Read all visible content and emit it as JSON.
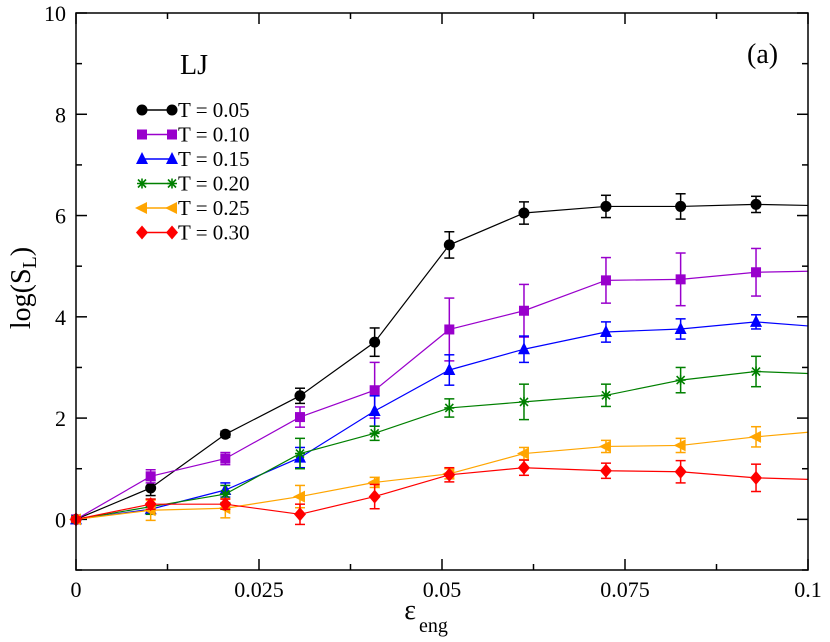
{
  "chart_data": {
    "type": "line",
    "title": "LJ",
    "panel_label": "(a)",
    "xlabel": "ε",
    "xlabel_sub": "eng",
    "ylabel": "log(S",
    "ylabel_sub": "L",
    "ylabel_close": ")",
    "xlim": [
      0,
      0.1
    ],
    "ylim": [
      -1,
      10
    ],
    "xticks": [
      0,
      0.025,
      0.05,
      0.075,
      0.1
    ],
    "xtick_labels": [
      "0",
      "0.025",
      "0.05",
      "0.075",
      "0.1"
    ],
    "yticks": [
      0,
      2,
      4,
      6,
      8,
      10
    ],
    "ytick_labels": [
      "0",
      "2",
      "4",
      "6",
      "8",
      "10"
    ],
    "legend_position": "top-left",
    "x": [
      0,
      0.0102,
      0.0204,
      0.0306,
      0.0408,
      0.051,
      0.0612,
      0.0724,
      0.0826,
      0.0929,
      0.1
    ],
    "series": [
      {
        "name": "T = 0.05",
        "color": "#000000",
        "marker": "circle",
        "values": [
          0,
          0.62,
          1.68,
          2.44,
          3.5,
          5.42,
          6.05,
          6.18,
          6.18,
          6.22,
          6.2
        ],
        "errors": [
          0.05,
          0.15,
          0.06,
          0.15,
          0.28,
          0.26,
          0.22,
          0.22,
          0.25,
          0.16,
          null
        ]
      },
      {
        "name": "T = 0.10",
        "color": "#9900cc",
        "marker": "square",
        "values": [
          0,
          0.85,
          1.2,
          2.02,
          2.55,
          3.75,
          4.12,
          4.72,
          4.74,
          4.88,
          4.9
        ],
        "errors": [
          0.05,
          0.13,
          0.12,
          0.2,
          0.55,
          0.62,
          0.52,
          0.45,
          0.52,
          0.47,
          null
        ]
      },
      {
        "name": "T = 0.15",
        "color": "#0000ff",
        "marker": "triangle",
        "values": [
          0,
          0.2,
          0.58,
          1.22,
          2.14,
          2.95,
          3.36,
          3.7,
          3.76,
          3.9,
          3.82
        ],
        "errors": [
          0.05,
          0.08,
          0.14,
          0.2,
          0.3,
          0.3,
          0.26,
          0.2,
          0.2,
          0.14,
          null
        ]
      },
      {
        "name": "T = 0.20",
        "color": "#008000",
        "marker": "star",
        "values": [
          0,
          0.25,
          0.5,
          1.3,
          1.7,
          2.2,
          2.32,
          2.45,
          2.75,
          2.92,
          2.88
        ],
        "errors": [
          0.05,
          0.15,
          0.17,
          0.3,
          0.14,
          0.18,
          0.35,
          0.22,
          0.25,
          0.3,
          null
        ]
      },
      {
        "name": "T = 0.25",
        "color": "#ffa500",
        "marker": "triangle-left",
        "values": [
          0,
          0.18,
          0.22,
          0.45,
          0.73,
          0.9,
          1.3,
          1.44,
          1.46,
          1.63,
          1.72
        ],
        "errors": [
          0.05,
          0.2,
          0.19,
          0.22,
          0.1,
          0.1,
          0.12,
          0.12,
          0.14,
          0.2,
          null
        ]
      },
      {
        "name": "T = 0.30",
        "color": "#ff0000",
        "marker": "diamond",
        "values": [
          0,
          0.3,
          0.3,
          0.1,
          0.45,
          0.88,
          1.02,
          0.96,
          0.94,
          0.82,
          0.79
        ],
        "errors": [
          0.05,
          0.1,
          0.1,
          0.2,
          0.24,
          0.14,
          0.15,
          0.15,
          0.22,
          0.27,
          null
        ]
      }
    ]
  }
}
